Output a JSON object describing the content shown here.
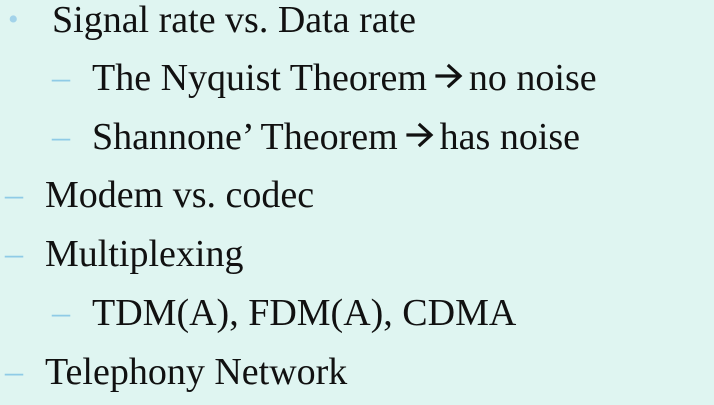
{
  "lines": [
    {
      "marker": "•",
      "text": "Signal rate vs. Data rate"
    },
    {
      "marker": "–",
      "text_before": "The Nyquist Theorem",
      "arrow": "arrow-right-icon",
      "text_after": "no noise"
    },
    {
      "marker": "–",
      "text_before": "Shannone’ Theorem",
      "arrow": "arrow-right-icon",
      "text_after": "has noise"
    },
    {
      "marker": "–",
      "text": "Modem vs. codec"
    },
    {
      "marker": "–",
      "text": "Multiplexing"
    },
    {
      "marker": "–",
      "text": "TDM(A), FDM(A), CDMA"
    },
    {
      "marker": "–",
      "text": "Telephony Network"
    }
  ],
  "colors": {
    "background": "#dff5f1",
    "bullet": "#a3d3ea",
    "text": "#111111"
  }
}
